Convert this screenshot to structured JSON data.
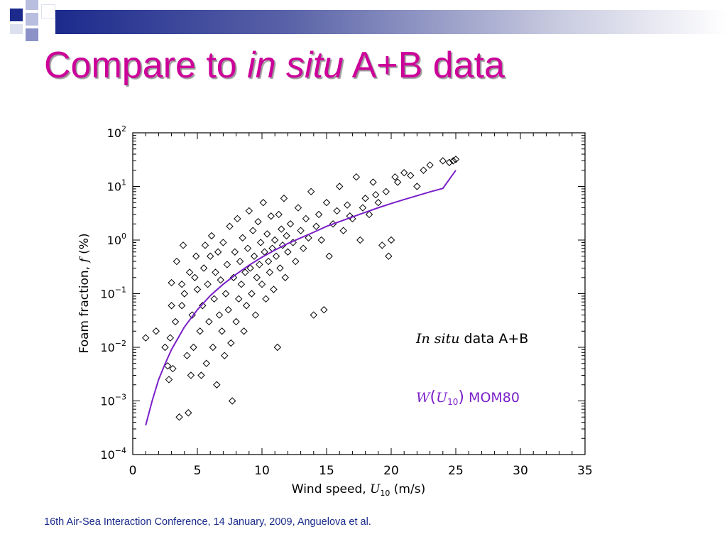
{
  "slide": {
    "title_part1": "Compare to ",
    "title_italic": "in situ",
    "title_part2": " A+B data",
    "footer": "16th Air-Sea Interaction Conference, 14 January, 2009, Anguelova et al."
  },
  "colors": {
    "title": "#cc0099",
    "footer": "#1a2a8a",
    "band_dark": "#1c2a8c",
    "model_curve": "#7a1fc8",
    "markers": "#000000"
  },
  "chart_data": {
    "type": "scatter",
    "xlabel_text": "Wind speed, ",
    "xlabel_var": "U",
    "xlabel_sub": "10",
    "xlabel_unit": " (m/s)",
    "ylabel_text": "Foam fraction, ",
    "ylabel_var": "f",
    "ylabel_unit": " (%)",
    "xlim": [
      0,
      35
    ],
    "ylim": [
      0.0001,
      100
    ],
    "yscale": "log",
    "x_ticks": [
      0,
      5,
      10,
      15,
      20,
      25,
      30,
      35
    ],
    "y_tick_exponents": [
      -4,
      -3,
      -2,
      -1,
      0,
      1,
      2
    ],
    "y_tick_base": "10",
    "legend_position": "inside-right",
    "legend": {
      "scatter_label_italic": "In situ",
      "scatter_label_rest": " data A+B",
      "model_label_func": "W",
      "model_label_var": "U",
      "model_label_sub": "10",
      "model_label_rest": " MOM80"
    },
    "series": [
      {
        "name": "In situ data A+B",
        "kind": "scatter",
        "marker": "diamond",
        "points": [
          [
            1.0,
            0.015
          ],
          [
            1.8,
            0.02
          ],
          [
            2.5,
            0.01
          ],
          [
            2.7,
            0.0045
          ],
          [
            2.8,
            0.0025
          ],
          [
            2.9,
            0.015
          ],
          [
            3.0,
            0.06
          ],
          [
            3.0,
            0.16
          ],
          [
            3.1,
            0.004
          ],
          [
            3.3,
            0.03
          ],
          [
            3.4,
            0.4
          ],
          [
            3.6,
            0.0005
          ],
          [
            3.8,
            0.15
          ],
          [
            3.8,
            0.06
          ],
          [
            3.9,
            0.8
          ],
          [
            4.0,
            0.1
          ],
          [
            4.2,
            0.007
          ],
          [
            4.3,
            0.0006
          ],
          [
            4.5,
            0.003
          ],
          [
            4.4,
            0.25
          ],
          [
            4.6,
            0.04
          ],
          [
            4.7,
            0.01
          ],
          [
            4.8,
            0.2
          ],
          [
            4.9,
            0.5
          ],
          [
            5.0,
            0.12
          ],
          [
            5.2,
            0.02
          ],
          [
            5.3,
            0.003
          ],
          [
            5.4,
            0.06
          ],
          [
            5.5,
            0.3
          ],
          [
            5.6,
            0.8
          ],
          [
            5.7,
            0.005
          ],
          [
            5.8,
            0.15
          ],
          [
            5.9,
            0.03
          ],
          [
            6.0,
            0.5
          ],
          [
            6.1,
            1.2
          ],
          [
            6.2,
            0.01
          ],
          [
            6.3,
            0.08
          ],
          [
            6.4,
            0.25
          ],
          [
            6.5,
            0.002
          ],
          [
            6.6,
            0.6
          ],
          [
            6.7,
            0.04
          ],
          [
            6.8,
            0.18
          ],
          [
            6.9,
            0.02
          ],
          [
            7.0,
            0.9
          ],
          [
            7.1,
            0.007
          ],
          [
            7.2,
            0.1
          ],
          [
            7.3,
            0.35
          ],
          [
            7.4,
            0.05
          ],
          [
            7.5,
            1.8
          ],
          [
            7.6,
            0.012
          ],
          [
            7.7,
            0.001
          ],
          [
            7.8,
            0.2
          ],
          [
            7.9,
            0.6
          ],
          [
            8.0,
            0.03
          ],
          [
            8.1,
            2.5
          ],
          [
            8.2,
            0.08
          ],
          [
            8.3,
            0.4
          ],
          [
            8.4,
            0.15
          ],
          [
            8.5,
            1.1
          ],
          [
            8.6,
            0.02
          ],
          [
            8.7,
            0.25
          ],
          [
            8.8,
            0.06
          ],
          [
            8.9,
            0.7
          ],
          [
            9.0,
            3.5
          ],
          [
            9.1,
            0.3
          ],
          [
            9.2,
            0.1
          ],
          [
            9.3,
            1.5
          ],
          [
            9.4,
            0.5
          ],
          [
            9.5,
            0.04
          ],
          [
            9.6,
            0.2
          ],
          [
            9.7,
            2.2
          ],
          [
            9.8,
            0.35
          ],
          [
            9.9,
            0.9
          ],
          [
            10.0,
            0.15
          ],
          [
            10.1,
            5.0
          ],
          [
            10.2,
            0.6
          ],
          [
            10.3,
            0.08
          ],
          [
            10.4,
            1.3
          ],
          [
            10.5,
            0.4
          ],
          [
            10.6,
            0.25
          ],
          [
            10.7,
            2.8
          ],
          [
            10.8,
            0.7
          ],
          [
            10.9,
            0.12
          ],
          [
            11.0,
            1.0
          ],
          [
            11.1,
            0.5
          ],
          [
            11.2,
            0.01
          ],
          [
            11.3,
            3.0
          ],
          [
            11.4,
            0.3
          ],
          [
            11.5,
            1.6
          ],
          [
            11.6,
            0.8
          ],
          [
            11.7,
            6.0
          ],
          [
            11.8,
            0.2
          ],
          [
            11.9,
            1.2
          ],
          [
            12.0,
            0.6
          ],
          [
            12.2,
            2.0
          ],
          [
            12.4,
            0.9
          ],
          [
            12.6,
            0.4
          ],
          [
            12.8,
            4.0
          ],
          [
            13.0,
            1.5
          ],
          [
            13.2,
            0.7
          ],
          [
            13.4,
            2.5
          ],
          [
            13.6,
            1.1
          ],
          [
            13.8,
            8.0
          ],
          [
            14.0,
            0.04
          ],
          [
            14.2,
            1.8
          ],
          [
            14.4,
            3.0
          ],
          [
            14.6,
            1.0
          ],
          [
            14.8,
            0.05
          ],
          [
            15.0,
            5.0
          ],
          [
            15.2,
            0.5
          ],
          [
            15.5,
            2.0
          ],
          [
            15.8,
            3.5
          ],
          [
            16.0,
            10.0
          ],
          [
            16.3,
            1.5
          ],
          [
            16.6,
            4.5
          ],
          [
            17.0,
            2.5
          ],
          [
            17.3,
            15.0
          ],
          [
            17.6,
            1.0
          ],
          [
            18.0,
            6.0
          ],
          [
            18.3,
            3.0
          ],
          [
            18.6,
            12.0
          ],
          [
            19.0,
            5.0
          ],
          [
            19.3,
            0.8
          ],
          [
            19.6,
            8.0
          ],
          [
            20.0,
            1.0
          ],
          [
            20.3,
            15.0
          ],
          [
            21.0,
            18.0
          ],
          [
            22.0,
            10.0
          ],
          [
            23.0,
            25.0
          ],
          [
            24.0,
            30.0
          ],
          [
            25.0,
            32.0
          ],
          [
            24.8,
            30.0
          ],
          [
            24.5,
            28.0
          ],
          [
            22.5,
            20.0
          ],
          [
            21.5,
            16.0
          ],
          [
            20.5,
            12.0
          ],
          [
            19.8,
            0.5
          ],
          [
            18.8,
            7.0
          ],
          [
            17.8,
            4.0
          ],
          [
            16.8,
            2.8
          ]
        ]
      },
      {
        "name": "W(U10) MOM80",
        "kind": "line",
        "x": [
          1,
          1.5,
          2,
          2.5,
          3,
          4,
          5,
          6,
          7,
          8,
          9,
          10,
          11,
          12,
          13,
          14,
          15,
          16,
          17,
          18,
          19,
          20,
          21,
          22,
          23,
          24,
          25
        ],
        "y": [
          0.00035,
          0.001,
          0.0025,
          0.0049,
          0.0091,
          0.024,
          0.05,
          0.092,
          0.15,
          0.23,
          0.34,
          0.48,
          0.65,
          0.86,
          1.1,
          1.4,
          1.8,
          2.2,
          2.7,
          3.3,
          4.0,
          4.8,
          5.7,
          6.7,
          7.9,
          9.2,
          20.0
        ]
      }
    ]
  }
}
